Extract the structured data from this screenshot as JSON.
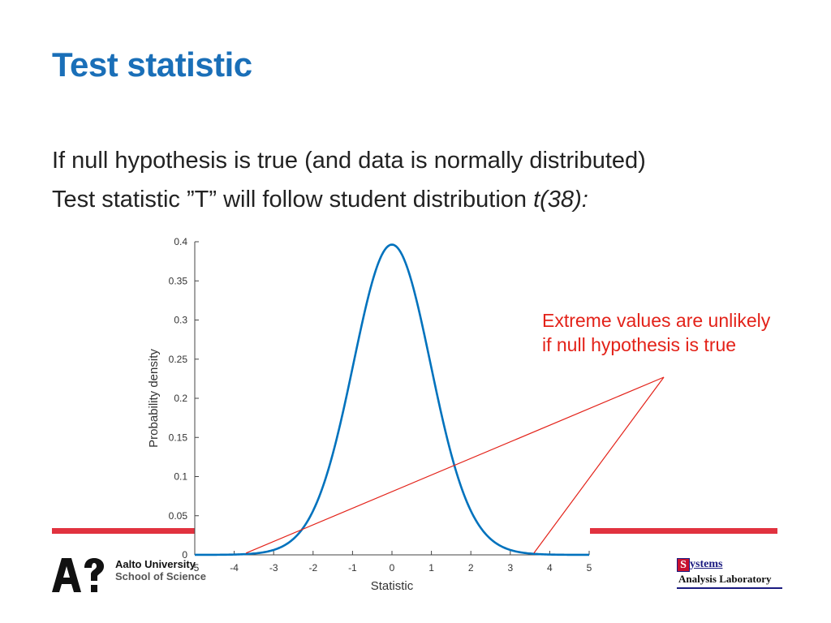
{
  "slide": {
    "title": "Test statistic",
    "line1": "If null hypothesis is true (and data is normally distributed)",
    "line2_text": "Test statistic ”T” will follow student distribution ",
    "line2_italic": "t(38):"
  },
  "annotation": {
    "line1": "Extreme values are unlikely",
    "line2": "if null hypothesis is true"
  },
  "footer": {
    "university": "Aalto University",
    "school": "School of Science",
    "lab_s": "S",
    "lab_ystems": "ystems",
    "lab_analysis": "Analysis Laboratory"
  },
  "colors": {
    "title": "#1a6fb8",
    "curve": "#0072bd",
    "annotation": "#e32219",
    "accent_bar": "#e1323f"
  },
  "chart_data": {
    "type": "line",
    "title": "",
    "xlabel": "Statistic",
    "ylabel": "Probability density",
    "xlim": [
      -5,
      5
    ],
    "ylim": [
      0,
      0.4
    ],
    "xticks": [
      -5,
      -4,
      -3,
      -2,
      -1,
      0,
      1,
      2,
      3,
      4,
      5
    ],
    "yticks": [
      0,
      0.05,
      0.1,
      0.15,
      0.2,
      0.25,
      0.3,
      0.35,
      0.4
    ],
    "xtick_labels": [
      "-5",
      "-4",
      "-3",
      "-2",
      "-1",
      "0",
      "1",
      "2",
      "3",
      "4",
      "5"
    ],
    "ytick_labels": [
      "0",
      "0.05",
      "0.1",
      "0.15",
      "0.2",
      "0.25",
      "0.3",
      "0.35",
      "0.4"
    ],
    "grid": false,
    "series": [
      {
        "distribution": "student-t",
        "df": 38,
        "x": [
          -5,
          -4.5,
          -4,
          -3.5,
          -3,
          -2.5,
          -2,
          -1.5,
          -1,
          -0.5,
          0,
          0.5,
          1,
          1.5,
          2,
          2.5,
          3,
          3.5,
          4,
          4.5,
          5
        ],
        "y": [
          0.0001,
          0.0003,
          0.0004,
          0.0013,
          0.0058,
          0.0189,
          0.0542,
          0.1276,
          0.2393,
          0.3494,
          0.3963,
          0.3494,
          0.2393,
          0.1276,
          0.0542,
          0.0189,
          0.0058,
          0.0013,
          0.0004,
          0.0003,
          0.0001
        ]
      }
    ]
  }
}
